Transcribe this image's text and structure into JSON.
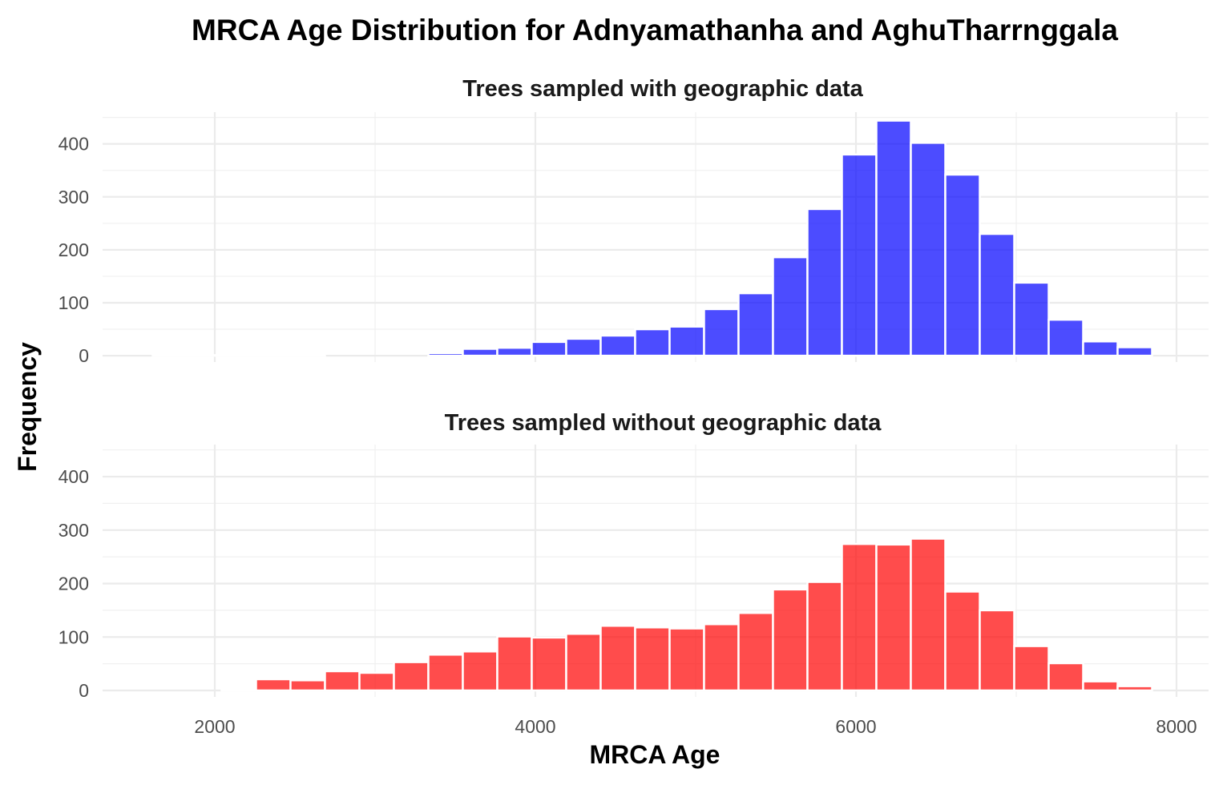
{
  "chart_data": {
    "type": "bar",
    "title": "MRCA Age Distribution for Adnyamathanha and AghuTharrnggala",
    "xlabel": "MRCA Age",
    "ylabel": "Frequency",
    "xlim": [
      1300,
      8200
    ],
    "ylim": [
      -12,
      460
    ],
    "x_ticks": [
      2000,
      4000,
      6000,
      8000
    ],
    "y_ticks": [
      0,
      100,
      200,
      300,
      400
    ],
    "bin_width": 215,
    "grid": true,
    "legend": "none",
    "panels": [
      {
        "title": "Trees sampled with geographic data",
        "color": "#0000FF",
        "opacity": 0.7,
        "bins": [
          {
            "x": 1720,
            "count": 1
          },
          {
            "x": 1935,
            "count": 1
          },
          {
            "x": 2150,
            "count": 1
          },
          {
            "x": 2365,
            "count": 1
          },
          {
            "x": 2580,
            "count": 1
          },
          {
            "x": 2795,
            "count": 0
          },
          {
            "x": 3010,
            "count": 0
          },
          {
            "x": 3225,
            "count": 0
          },
          {
            "x": 3440,
            "count": 5
          },
          {
            "x": 3655,
            "count": 13
          },
          {
            "x": 3870,
            "count": 15
          },
          {
            "x": 4085,
            "count": 26
          },
          {
            "x": 4300,
            "count": 32
          },
          {
            "x": 4515,
            "count": 38
          },
          {
            "x": 4730,
            "count": 50
          },
          {
            "x": 4945,
            "count": 55
          },
          {
            "x": 5160,
            "count": 88
          },
          {
            "x": 5375,
            "count": 118
          },
          {
            "x": 5590,
            "count": 186
          },
          {
            "x": 5805,
            "count": 277
          },
          {
            "x": 6020,
            "count": 380
          },
          {
            "x": 6235,
            "count": 444
          },
          {
            "x": 6450,
            "count": 402
          },
          {
            "x": 6665,
            "count": 342
          },
          {
            "x": 6880,
            "count": 230
          },
          {
            "x": 7095,
            "count": 138
          },
          {
            "x": 7310,
            "count": 68
          },
          {
            "x": 7525,
            "count": 27
          },
          {
            "x": 7740,
            "count": 16
          },
          {
            "x": 7955,
            "count": 0
          }
        ]
      },
      {
        "title": "Trees sampled without geographic data",
        "color": "#FF0000",
        "opacity": 0.7,
        "bins": [
          {
            "x": 1720,
            "count": 0
          },
          {
            "x": 1935,
            "count": 0
          },
          {
            "x": 2150,
            "count": 2
          },
          {
            "x": 2365,
            "count": 21
          },
          {
            "x": 2580,
            "count": 19
          },
          {
            "x": 2795,
            "count": 36
          },
          {
            "x": 3010,
            "count": 33
          },
          {
            "x": 3225,
            "count": 53
          },
          {
            "x": 3440,
            "count": 67
          },
          {
            "x": 3655,
            "count": 73
          },
          {
            "x": 3870,
            "count": 101
          },
          {
            "x": 4085,
            "count": 99
          },
          {
            "x": 4300,
            "count": 106
          },
          {
            "x": 4515,
            "count": 121
          },
          {
            "x": 4730,
            "count": 118
          },
          {
            "x": 4945,
            "count": 116
          },
          {
            "x": 5160,
            "count": 124
          },
          {
            "x": 5375,
            "count": 145
          },
          {
            "x": 5590,
            "count": 189
          },
          {
            "x": 5805,
            "count": 203
          },
          {
            "x": 6020,
            "count": 274
          },
          {
            "x": 6235,
            "count": 273
          },
          {
            "x": 6450,
            "count": 284
          },
          {
            "x": 6665,
            "count": 185
          },
          {
            "x": 6880,
            "count": 150
          },
          {
            "x": 7095,
            "count": 83
          },
          {
            "x": 7310,
            "count": 51
          },
          {
            "x": 7525,
            "count": 17
          },
          {
            "x": 7740,
            "count": 8
          },
          {
            "x": 7955,
            "count": 0
          }
        ]
      }
    ]
  }
}
